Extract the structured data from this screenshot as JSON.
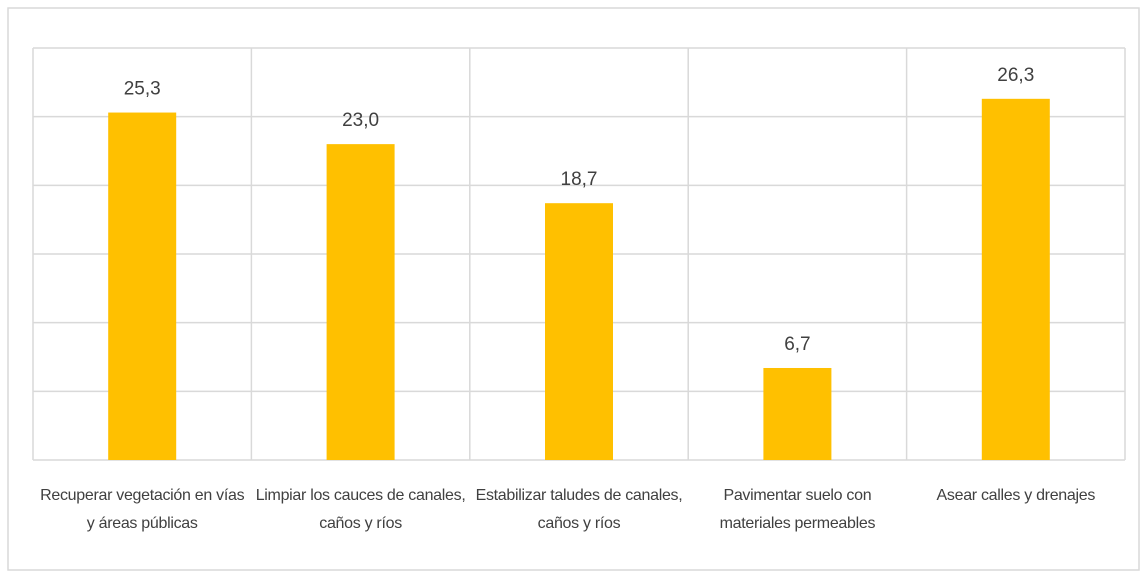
{
  "chart_data": {
    "type": "bar",
    "categories": [
      "Recuperar vegetación en vías y áreas públicas",
      "Limpiar los cauces de canales, caños y ríos",
      "Estabilizar taludes de canales, caños y ríos",
      "Pavimentar suelo con materiales permeables",
      "Asear calles y drenajes"
    ],
    "values": [
      25.3,
      23.0,
      18.7,
      6.7,
      26.3
    ],
    "value_labels": [
      "25,3",
      "23,0",
      "18,7",
      "6,7",
      "26,3"
    ],
    "color": "#ffc000",
    "ylim": [
      0,
      30
    ],
    "yticks": [
      0,
      5,
      10,
      15,
      20,
      25,
      30
    ],
    "grid": true,
    "ytick_labels": false
  }
}
